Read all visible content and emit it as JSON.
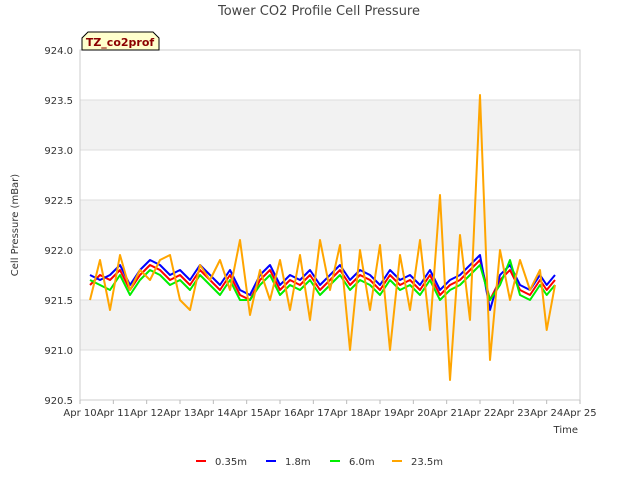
{
  "chart_data": {
    "type": "line",
    "title": "Tower CO2 Profile Cell Pressure",
    "xlabel": "Time",
    "ylabel": "Cell Pressure (mBar)",
    "site_tag": "TZ_co2prof",
    "ylim": [
      920.5,
      924.0
    ],
    "yticks": [
      "920.5",
      "921.0",
      "921.5",
      "922.0",
      "922.5",
      "923.0",
      "923.5",
      "924.0"
    ],
    "xlim": [
      10,
      25
    ],
    "xticks": [
      {
        "value": 10,
        "label": "Apr 10"
      },
      {
        "value": 11,
        "label": "Apr 11"
      },
      {
        "value": 12,
        "label": "Apr 12"
      },
      {
        "value": 13,
        "label": "Apr 13"
      },
      {
        "value": 14,
        "label": "Apr 14"
      },
      {
        "value": 15,
        "label": "Apr 15"
      },
      {
        "value": 16,
        "label": "Apr 16"
      },
      {
        "value": 17,
        "label": "Apr 17"
      },
      {
        "value": 18,
        "label": "Apr 18"
      },
      {
        "value": 19,
        "label": "Apr 19"
      },
      {
        "value": 20,
        "label": "Apr 20"
      },
      {
        "value": 21,
        "label": "Apr 21"
      },
      {
        "value": 22,
        "label": "Apr 22"
      },
      {
        "value": 23,
        "label": "Apr 23"
      },
      {
        "value": 24,
        "label": "Apr 24"
      },
      {
        "value": 25,
        "label": "Apr 25"
      }
    ],
    "grid": true,
    "legend_position": "bottom",
    "x": [
      10.3,
      10.6,
      10.9,
      11.2,
      11.5,
      11.8,
      12.1,
      12.4,
      12.7,
      13.0,
      13.3,
      13.6,
      13.9,
      14.2,
      14.5,
      14.8,
      15.1,
      15.4,
      15.7,
      16.0,
      16.3,
      16.6,
      16.9,
      17.2,
      17.5,
      17.8,
      18.1,
      18.4,
      18.7,
      19.0,
      19.3,
      19.6,
      19.9,
      20.2,
      20.5,
      20.8,
      21.1,
      21.4,
      21.7,
      22.0,
      22.3,
      22.6,
      22.9,
      23.2,
      23.5,
      23.8,
      24.0,
      24.25
    ],
    "series": [
      {
        "name": "0.35m",
        "color": "#ff0000",
        "values": [
          921.65,
          921.75,
          921.7,
          921.8,
          921.6,
          921.75,
          921.85,
          921.8,
          921.7,
          921.75,
          921.65,
          921.8,
          921.7,
          921.6,
          921.75,
          921.55,
          921.5,
          921.7,
          921.8,
          921.6,
          921.7,
          921.65,
          921.75,
          921.6,
          921.7,
          921.8,
          921.65,
          921.75,
          921.7,
          921.6,
          921.75,
          921.65,
          921.7,
          921.6,
          921.75,
          921.55,
          921.65,
          921.7,
          921.8,
          921.9,
          921.5,
          921.7,
          921.8,
          921.6,
          921.55,
          921.7,
          921.6,
          921.7
        ]
      },
      {
        "name": "1.8m",
        "color": "#0000ff",
        "values": [
          921.75,
          921.7,
          921.75,
          921.85,
          921.65,
          921.8,
          921.9,
          921.85,
          921.75,
          921.8,
          921.7,
          921.85,
          921.75,
          921.65,
          921.8,
          921.6,
          921.55,
          921.75,
          921.85,
          921.65,
          921.75,
          921.7,
          921.8,
          921.65,
          921.75,
          921.85,
          921.7,
          921.8,
          921.75,
          921.65,
          921.8,
          921.7,
          921.75,
          921.65,
          921.8,
          921.6,
          921.7,
          921.75,
          921.85,
          921.95,
          921.4,
          921.75,
          921.85,
          921.65,
          921.6,
          921.75,
          921.65,
          921.75
        ]
      },
      {
        "name": "6.0m",
        "color": "#00ee00",
        "values": [
          921.7,
          921.65,
          921.6,
          921.75,
          921.55,
          921.7,
          921.8,
          921.75,
          921.65,
          921.7,
          921.6,
          921.75,
          921.65,
          921.55,
          921.7,
          921.5,
          921.5,
          921.65,
          921.75,
          921.55,
          921.65,
          921.6,
          921.7,
          921.55,
          921.65,
          921.75,
          921.6,
          921.7,
          921.65,
          921.55,
          921.7,
          921.6,
          921.65,
          921.55,
          921.7,
          921.5,
          921.6,
          921.65,
          921.75,
          921.85,
          921.5,
          921.65,
          921.9,
          921.55,
          921.5,
          921.65,
          921.55,
          921.65
        ]
      },
      {
        "name": "23.5m",
        "color": "#ffa500",
        "values": [
          921.5,
          921.9,
          921.4,
          921.95,
          921.6,
          921.8,
          921.7,
          921.9,
          921.95,
          921.5,
          921.4,
          921.85,
          921.7,
          921.9,
          921.6,
          922.1,
          921.35,
          921.8,
          921.5,
          921.9,
          921.4,
          921.95,
          921.3,
          922.1,
          921.6,
          922.05,
          921.0,
          922.0,
          921.4,
          922.05,
          921.0,
          921.95,
          921.4,
          922.1,
          921.2,
          922.55,
          920.7,
          922.15,
          921.3,
          923.55,
          920.9,
          922.0,
          921.5,
          921.9,
          921.6,
          921.8,
          921.2,
          921.65
        ]
      }
    ]
  }
}
